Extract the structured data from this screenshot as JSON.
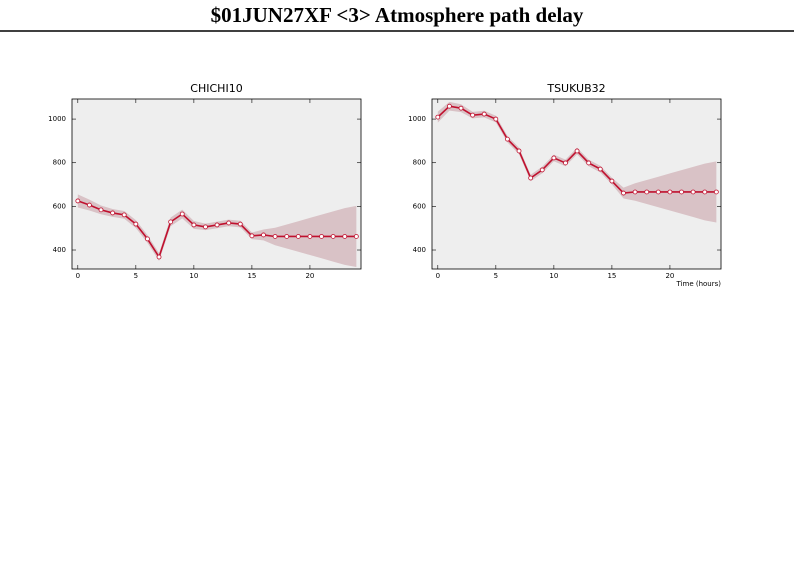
{
  "title": "$01JUN27XF <3>  Atmosphere path delay",
  "chart_data": [
    {
      "type": "line",
      "title": "CHICHI10",
      "color": "#c0102e",
      "band_color": "#d9c2c6",
      "background": "#eeeeee",
      "x": [
        0,
        1,
        2,
        3,
        4,
        5,
        6,
        7,
        8,
        9,
        10,
        11,
        12,
        13,
        14,
        15,
        16,
        17,
        18,
        19,
        20,
        21,
        22,
        23,
        24
      ],
      "values": [
        625,
        606,
        584,
        570,
        561,
        519,
        451,
        368,
        529,
        565,
        515,
        506,
        515,
        524,
        519,
        465,
        469,
        462,
        462,
        462,
        462,
        462,
        462,
        462,
        462
      ],
      "errors": [
        30,
        25,
        20,
        18,
        18,
        18,
        18,
        18,
        20,
        20,
        18,
        15,
        15,
        15,
        15,
        15,
        25,
        40,
        55,
        70,
        85,
        100,
        115,
        130,
        140
      ],
      "xlim": [
        -0.5,
        24.4
      ],
      "ylim": [
        313,
        1092
      ],
      "xticks": [
        0,
        5,
        10,
        15,
        20
      ],
      "yticks": [
        400,
        600,
        800,
        1000
      ]
    },
    {
      "type": "line",
      "title": "TSUKUB32",
      "xlabel": "Time (hours)",
      "color": "#c0102e",
      "band_color": "#d9c2c6",
      "background": "#eeeeee",
      "x": [
        0,
        1,
        2,
        3,
        4,
        5,
        6,
        7,
        8,
        9,
        10,
        11,
        12,
        13,
        14,
        15,
        16,
        17,
        18,
        19,
        20,
        21,
        22,
        23,
        24
      ],
      "values": [
        1009,
        1059,
        1050,
        1018,
        1023,
        1000,
        908,
        854,
        730,
        767,
        822,
        799,
        854,
        799,
        771,
        716,
        661,
        666,
        666,
        666,
        666,
        666,
        666,
        666,
        666
      ],
      "errors": [
        25,
        20,
        18,
        15,
        15,
        15,
        15,
        15,
        15,
        15,
        15,
        15,
        15,
        15,
        15,
        15,
        25,
        40,
        55,
        70,
        85,
        100,
        115,
        130,
        140
      ],
      "xlim": [
        -0.5,
        24.4
      ],
      "ylim": [
        313,
        1092
      ],
      "xticks": [
        0,
        5,
        10,
        15,
        20
      ],
      "yticks": [
        400,
        600,
        800,
        1000
      ]
    }
  ]
}
